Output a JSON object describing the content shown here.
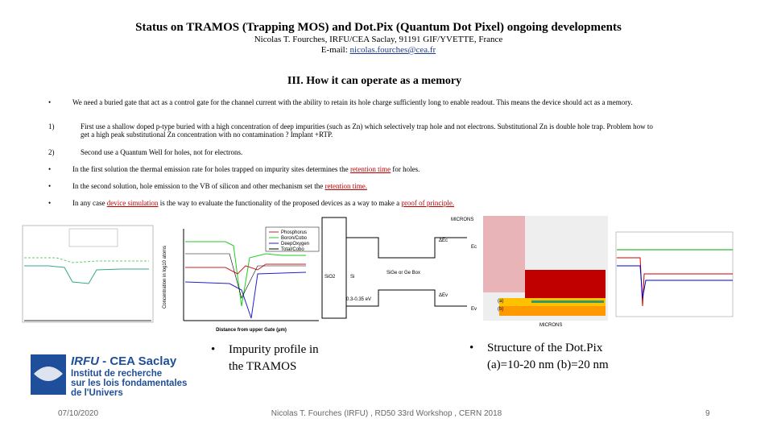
{
  "header": {
    "title": "Status on TRAMOS (Trapping MOS) and Dot.Pix (Quantum Dot Pixel) ongoing developments",
    "author": "Nicolas T. Fourches, IRFU/CEA Saclay, 91191 GIF/YVETTE, France",
    "email_label": "E-mail: ",
    "email": "nicolas.fourches@cea.fr"
  },
  "section": {
    "heading": "III. How it can operate as a memory",
    "items": [
      {
        "marker": "•",
        "parts": [
          "We need  a buried gate that act as a control gate for the channel current with the ability to retain its hole charge sufficiently long to enable  readout. This means the device should act as a memory."
        ]
      },
      {
        "marker": "1)",
        "parts": [
          "First use a shallow doped p-type buried with a high concentration of deep impurities (such as Zn) which selectively trap hole and not electrons. Substitutional Zn is double hole trap. Problem how to get a high peak substitutional Zn concentration with no contamination ? Implant +RTP."
        ]
      },
      {
        "marker": "2)",
        "parts": [
          "Second use a Quantum Well for holes, not for electrons."
        ]
      },
      {
        "marker": "•",
        "parts": [
          "In the first solution the thermal emission rate for holes trapped on impurity sites determines the ",
          "retention time",
          " for holes."
        ]
      },
      {
        "marker": "•",
        "parts": [
          "In the second solution, hole emission to the  VB of silicon and other mechanism set the ",
          "retention time."
        ]
      },
      {
        "marker": "•",
        "parts": [
          "In any case ",
          "device simulation",
          " is the way to evaluate the functionality of the proposed devices as a way to make a ",
          "proof of principle."
        ]
      }
    ]
  },
  "figures": {
    "profile_legend": [
      "Phosphorus",
      "Boron/Cobo",
      "DeepOxygen",
      "Total/Cobo"
    ],
    "profile_xlabel": "Distance from upper Gate (µm)",
    "profile_ylabel": "Concentration in log10 atoms",
    "band_labels": [
      "MICRONS",
      "SiO2",
      "Si",
      "SiGe or Ge Box",
      "0.3-0.35 eV",
      "ΔEc",
      "ΔEv",
      "Ec",
      "Ev"
    ],
    "structure_labels": [
      "(a)",
      "(b)",
      "MICRONS"
    ]
  },
  "captions": [
    {
      "marker": "•",
      "text": "Impurity profile in the TRAMOS"
    },
    {
      "marker": "•",
      "text": "Structure of the Dot.Pix (a)=10-20 nm (b)=20 nm"
    }
  ],
  "logo": {
    "name": "IRFU",
    "suffix": "- CEA Saclay",
    "lines": [
      "Institut de recherche",
      "sur les lois fondamentales",
      "de l'Univers"
    ]
  },
  "footer": {
    "date": "07/10/2020",
    "center": "Nicolas T. Fourches (IRFU) , RD50 33rd Workshop , CERN 2018",
    "page": "9"
  }
}
